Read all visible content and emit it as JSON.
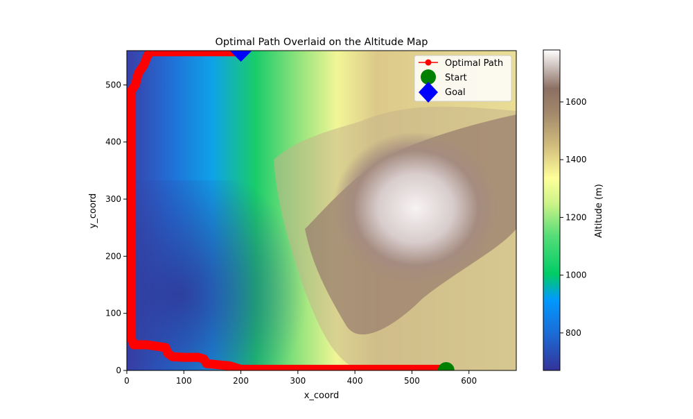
{
  "chart_data": {
    "type": "heatmap",
    "title": "Optimal Path Overlaid on the Altitude Map",
    "xlabel": "x_coord",
    "ylabel": "y_coord",
    "xlim": [
      0,
      683
    ],
    "ylim": [
      0,
      560
    ],
    "xticks": [
      0,
      100,
      200,
      300,
      400,
      500,
      600
    ],
    "yticks": [
      0,
      100,
      200,
      300,
      400,
      500
    ],
    "colorbar": {
      "label": "Altitude (m)",
      "range": [
        670,
        1780
      ],
      "ticks": [
        800,
        1000,
        1200,
        1400,
        1600
      ],
      "colormap": "terrain"
    },
    "legend": {
      "placement": "upper-right",
      "entries": [
        {
          "label": "Optimal Path",
          "marker": "line-dot",
          "color": "#ff0000"
        },
        {
          "label": "Start",
          "marker": "circle",
          "color": "#008000"
        },
        {
          "label": "Goal",
          "marker": "diamond",
          "color": "#0000ff"
        }
      ]
    },
    "series": [
      {
        "name": "Optimal Path",
        "color": "#ff0000",
        "points": [
          [
            560,
            2
          ],
          [
            450,
            2
          ],
          [
            300,
            2
          ],
          [
            200,
            2
          ],
          [
            190,
            5
          ],
          [
            180,
            8
          ],
          [
            160,
            10
          ],
          [
            140,
            12
          ],
          [
            135,
            20
          ],
          [
            125,
            23
          ],
          [
            100,
            23
          ],
          [
            80,
            24
          ],
          [
            72,
            30
          ],
          [
            68,
            40
          ],
          [
            55,
            42
          ],
          [
            35,
            45
          ],
          [
            12,
            45
          ],
          [
            8,
            55
          ],
          [
            8,
            100
          ],
          [
            8,
            200
          ],
          [
            8,
            300
          ],
          [
            8,
            400
          ],
          [
            8,
            490
          ],
          [
            15,
            500
          ],
          [
            20,
            520
          ],
          [
            30,
            535
          ],
          [
            35,
            548
          ],
          [
            40,
            558
          ],
          [
            100,
            558
          ],
          [
            150,
            558
          ],
          [
            198,
            558
          ]
        ]
      }
    ],
    "start": {
      "label": "Start",
      "x": 560,
      "y": 0
    },
    "goal": {
      "label": "Goal",
      "x": 200,
      "y": 560
    }
  }
}
